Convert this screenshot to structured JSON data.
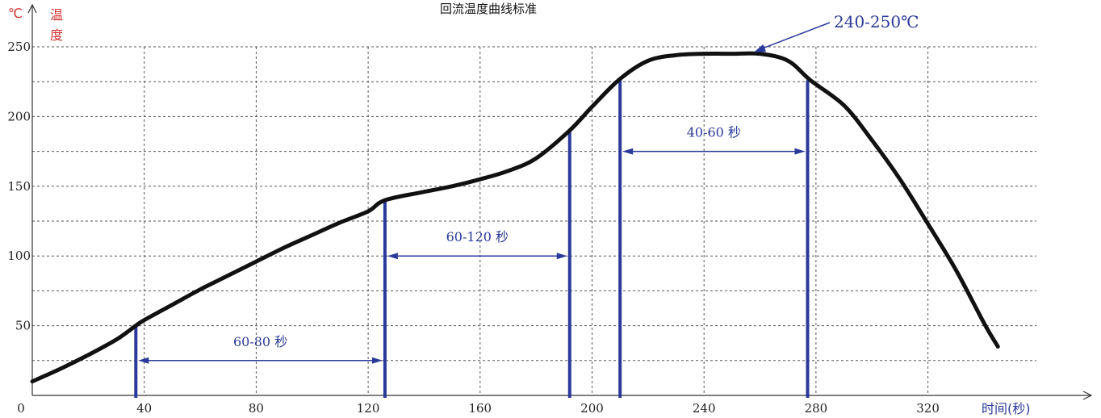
{
  "chart_data": {
    "type": "line",
    "title": "回流温度曲线标准",
    "x_unit_label": "时间(秒)",
    "y_unit_symbol": "℃",
    "y_unit_label": [
      "温",
      "度"
    ],
    "xlim": [
      0,
      355
    ],
    "ylim": [
      0,
      250
    ],
    "x_ticks": [
      0,
      40,
      80,
      120,
      160,
      200,
      240,
      280,
      320
    ],
    "y_ticks": [
      50,
      100,
      150,
      200,
      250
    ],
    "grid": true,
    "series": [
      {
        "color": "#111111",
        "points": [
          [
            0,
            10
          ],
          [
            10,
            19
          ],
          [
            20,
            29
          ],
          [
            30,
            40
          ],
          [
            37,
            50
          ],
          [
            40,
            54
          ],
          [
            50,
            65
          ],
          [
            60,
            76
          ],
          [
            70,
            86
          ],
          [
            80,
            96
          ],
          [
            90,
            106
          ],
          [
            100,
            115
          ],
          [
            110,
            124
          ],
          [
            120,
            132
          ],
          [
            126,
            140
          ],
          [
            140,
            146
          ],
          [
            150,
            150
          ],
          [
            160,
            155
          ],
          [
            170,
            161
          ],
          [
            180,
            170
          ],
          [
            192,
            190
          ],
          [
            200,
            207
          ],
          [
            210,
            227
          ],
          [
            220,
            240
          ],
          [
            230,
            244
          ],
          [
            240,
            245
          ],
          [
            250,
            245
          ],
          [
            260,
            245
          ],
          [
            270,
            240
          ],
          [
            278,
            226
          ],
          [
            290,
            208
          ],
          [
            300,
            183
          ],
          [
            310,
            155
          ],
          [
            320,
            123
          ],
          [
            330,
            90
          ],
          [
            340,
            52
          ],
          [
            345,
            35
          ]
        ]
      }
    ],
    "markers": [
      {
        "x": 37,
        "y": 50
      },
      {
        "x": 126,
        "y": 140
      },
      {
        "x": 192,
        "y": 190
      },
      {
        "x": 210,
        "y": 227
      },
      {
        "x": 277,
        "y": 226
      }
    ],
    "annotations": [
      {
        "label": "60-80 秒",
        "from": 37,
        "to": 126,
        "y": 25
      },
      {
        "label": "60-120 秒",
        "from": 126,
        "to": 192,
        "y": 100
      },
      {
        "label": "40-60 秒",
        "from": 210,
        "to": 277,
        "y": 175
      },
      {
        "label": "240-250℃",
        "point": [
          255,
          245
        ]
      }
    ],
    "colors": {
      "curve": "#111111",
      "markers": "#2b3a9a",
      "title_unit": "#d32f2f"
    }
  }
}
